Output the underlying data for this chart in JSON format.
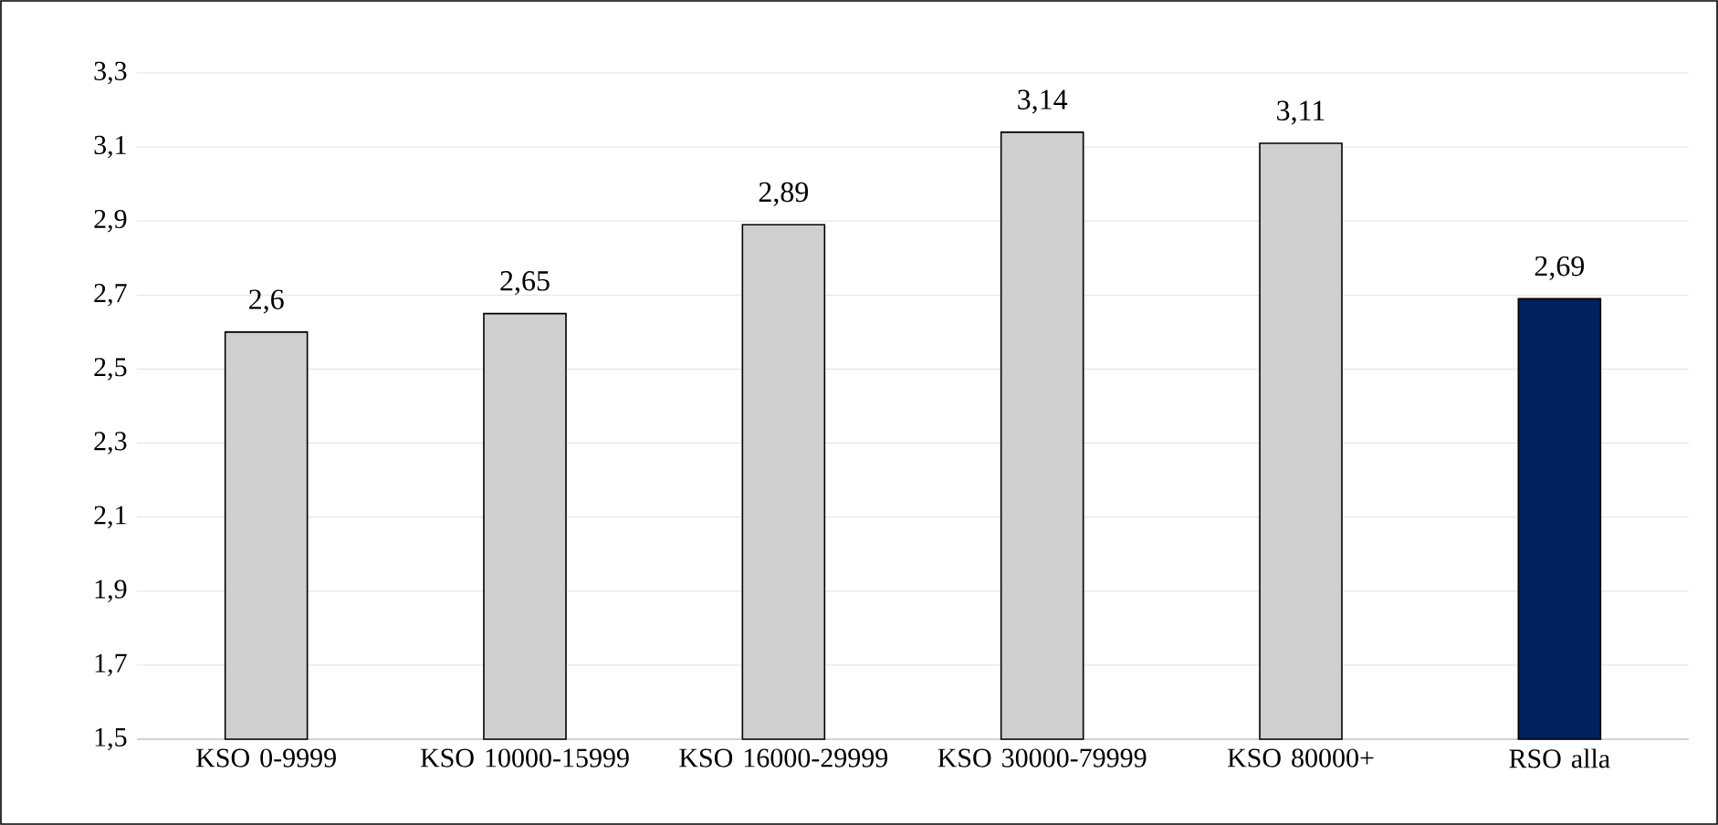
{
  "chart_data": {
    "type": "bar",
    "categories": [
      "KSO 0-9999",
      "KSO 10000-15999",
      "KSO 16000-29999",
      "KSO 30000-79999",
      "KSO 80000+",
      "RSO alla"
    ],
    "values": [
      2.6,
      2.65,
      2.89,
      3.14,
      3.11,
      2.69
    ],
    "colors": [
      "#d0cece",
      "#d0cece",
      "#d0cece",
      "#d0cece",
      "#d0cece",
      "#002060"
    ],
    "value_labels": [
      "2,6",
      "2,65",
      "2,89",
      "3,14",
      "3,11",
      "2,69"
    ],
    "ylim": [
      1.5,
      3.3
    ],
    "yticks": [
      {
        "value": 1.5,
        "label": "1,5"
      },
      {
        "value": 1.7,
        "label": "1,7"
      },
      {
        "value": 1.9,
        "label": "1,9"
      },
      {
        "value": 2.1,
        "label": "2,1"
      },
      {
        "value": 2.3,
        "label": "2,3"
      },
      {
        "value": 2.5,
        "label": "2,5"
      },
      {
        "value": 2.7,
        "label": "2,7"
      },
      {
        "value": 2.9,
        "label": "2,9"
      },
      {
        "value": 3.1,
        "label": "3,1"
      },
      {
        "value": 3.3,
        "label": "3,3"
      }
    ],
    "grid": "y"
  }
}
